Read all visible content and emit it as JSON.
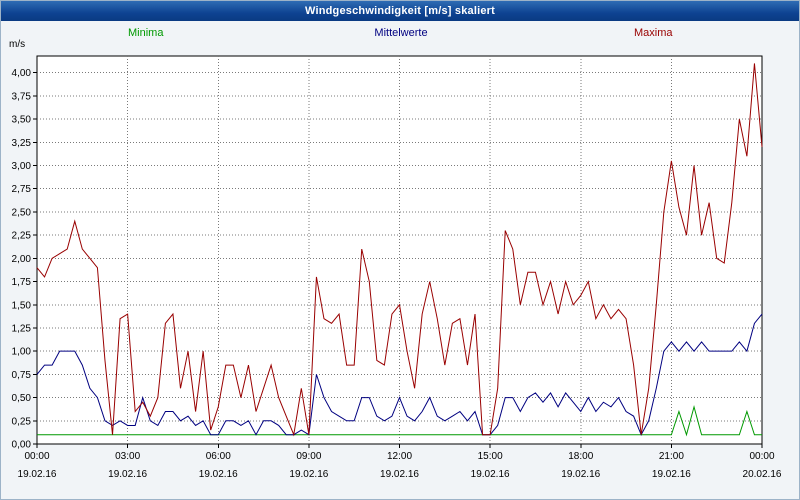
{
  "title": "Windgeschwindigkeit [m/s] skaliert",
  "colors": {
    "title_bar": "#0e4392",
    "title_text": "#ffffff",
    "background": "#f1f4f7",
    "plot_background": "#ffffff",
    "grid": "#7a7a7a",
    "axis": "#000000",
    "minima": "#009900",
    "mittelwerte": "#000080",
    "maxima": "#990000"
  },
  "chart_data": {
    "type": "line",
    "title": "Windgeschwindigkeit [m/s] skaliert",
    "ylabel": "m/s",
    "ylim": [
      0,
      4.18
    ],
    "ytick_step": 0.25,
    "ytick_labels": [
      "0,00",
      "0,25",
      "0,50",
      "0,75",
      "1,00",
      "1,25",
      "1,50",
      "1,75",
      "2,00",
      "2,25",
      "2,50",
      "2,75",
      "3,00",
      "3,25",
      "3,50",
      "3,75",
      "4,00"
    ],
    "grid": "dotted",
    "legend_position": "top",
    "x_step_hours": 0.25,
    "x_range_hours": [
      0,
      24
    ],
    "xticks": [
      {
        "hour": 0,
        "time": "00:00",
        "date": "19.02.16"
      },
      {
        "hour": 3,
        "time": "03:00",
        "date": "19.02.16"
      },
      {
        "hour": 6,
        "time": "06:00",
        "date": "19.02.16"
      },
      {
        "hour": 9,
        "time": "09:00",
        "date": "19.02.16"
      },
      {
        "hour": 12,
        "time": "12:00",
        "date": "19.02.16"
      },
      {
        "hour": 15,
        "time": "15:00",
        "date": "19.02.16"
      },
      {
        "hour": 18,
        "time": "18:00",
        "date": "19.02.16"
      },
      {
        "hour": 21,
        "time": "21:00",
        "date": "19.02.16"
      },
      {
        "hour": 24,
        "time": "00:00",
        "date": "20.02.16"
      }
    ],
    "series": [
      {
        "name": "Minima",
        "color": "#009900",
        "values": [
          0.1,
          0.1,
          0.1,
          0.1,
          0.1,
          0.1,
          0.1,
          0.1,
          0.1,
          0.1,
          0.1,
          0.1,
          0.1,
          0.1,
          0.1,
          0.1,
          0.1,
          0.1,
          0.1,
          0.1,
          0.1,
          0.1,
          0.1,
          0.1,
          0.1,
          0.1,
          0.1,
          0.1,
          0.1,
          0.1,
          0.1,
          0.1,
          0.1,
          0.1,
          0.1,
          0.1,
          0.1,
          0.1,
          0.1,
          0.1,
          0.1,
          0.1,
          0.1,
          0.1,
          0.1,
          0.1,
          0.1,
          0.1,
          0.1,
          0.1,
          0.1,
          0.1,
          0.1,
          0.1,
          0.1,
          0.1,
          0.1,
          0.1,
          0.1,
          0.1,
          0.1,
          0.1,
          0.1,
          0.1,
          0.1,
          0.1,
          0.1,
          0.1,
          0.1,
          0.1,
          0.1,
          0.1,
          0.1,
          0.1,
          0.1,
          0.1,
          0.1,
          0.1,
          0.1,
          0.1,
          0.1,
          0.1,
          0.1,
          0.1,
          0.1,
          0.35,
          0.1,
          0.4,
          0.1,
          0.1,
          0.1,
          0.1,
          0.1,
          0.1,
          0.35,
          0.1,
          0.1
        ]
      },
      {
        "name": "Mittelwerte",
        "color": "#000080",
        "values": [
          0.75,
          0.85,
          0.85,
          1.0,
          1.0,
          1.0,
          0.85,
          0.6,
          0.5,
          0.25,
          0.2,
          0.25,
          0.2,
          0.2,
          0.5,
          0.25,
          0.2,
          0.35,
          0.35,
          0.25,
          0.3,
          0.2,
          0.25,
          0.1,
          0.1,
          0.25,
          0.25,
          0.2,
          0.25,
          0.1,
          0.25,
          0.25,
          0.2,
          0.1,
          0.1,
          0.15,
          0.1,
          0.75,
          0.5,
          0.35,
          0.3,
          0.25,
          0.25,
          0.5,
          0.5,
          0.3,
          0.25,
          0.3,
          0.5,
          0.3,
          0.25,
          0.35,
          0.5,
          0.3,
          0.25,
          0.3,
          0.35,
          0.25,
          0.35,
          0.1,
          0.1,
          0.2,
          0.5,
          0.5,
          0.35,
          0.5,
          0.55,
          0.45,
          0.55,
          0.4,
          0.55,
          0.45,
          0.35,
          0.5,
          0.35,
          0.45,
          0.4,
          0.5,
          0.35,
          0.3,
          0.1,
          0.25,
          0.6,
          1.0,
          1.1,
          1.0,
          1.1,
          1.0,
          1.1,
          1.0,
          1.0,
          1.0,
          1.0,
          1.1,
          1.0,
          1.3,
          1.4
        ]
      },
      {
        "name": "Maxima",
        "color": "#990000",
        "values": [
          1.9,
          1.8,
          2.0,
          2.05,
          2.1,
          2.4,
          2.1,
          2.0,
          1.9,
          0.9,
          0.1,
          1.35,
          1.4,
          0.35,
          0.45,
          0.3,
          0.5,
          1.3,
          1.4,
          0.6,
          1.0,
          0.35,
          1.0,
          0.15,
          0.4,
          0.85,
          0.85,
          0.5,
          0.85,
          0.35,
          0.6,
          0.85,
          0.5,
          0.3,
          0.1,
          0.6,
          0.1,
          1.8,
          1.35,
          1.3,
          1.4,
          0.85,
          0.85,
          2.1,
          1.75,
          0.9,
          0.85,
          1.4,
          1.5,
          1.0,
          0.6,
          1.4,
          1.75,
          1.35,
          0.85,
          1.3,
          1.35,
          0.85,
          1.4,
          0.1,
          0.1,
          0.6,
          2.3,
          2.1,
          1.5,
          1.85,
          1.85,
          1.5,
          1.75,
          1.4,
          1.75,
          1.5,
          1.6,
          1.75,
          1.35,
          1.5,
          1.35,
          1.45,
          1.35,
          0.85,
          0.1,
          0.6,
          1.5,
          2.5,
          3.05,
          2.55,
          2.25,
          3.0,
          2.25,
          2.6,
          2.0,
          1.95,
          2.6,
          3.5,
          3.1,
          4.1,
          3.2
        ]
      }
    ]
  }
}
